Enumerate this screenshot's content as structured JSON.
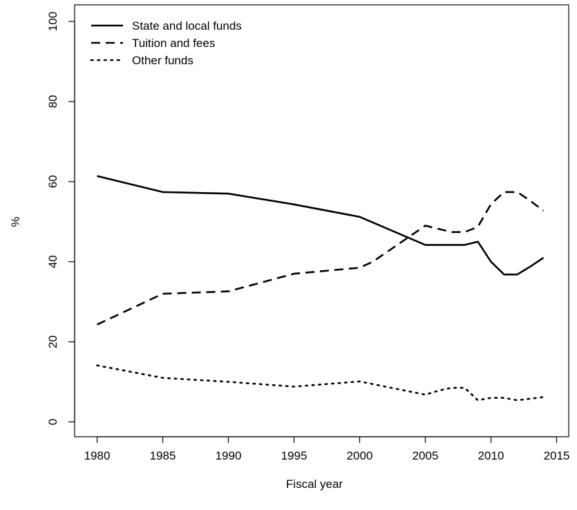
{
  "chart_data": {
    "type": "line",
    "title": "",
    "xlabel": "Fiscal year",
    "ylabel": "%",
    "xlim": [
      1980,
      2015
    ],
    "ylim": [
      0,
      100
    ],
    "x_ticks": [
      1980,
      1985,
      1990,
      1995,
      2000,
      2005,
      2010,
      2015
    ],
    "y_ticks": [
      0,
      20,
      40,
      60,
      80,
      100
    ],
    "grid": false,
    "legend_position": "top-left",
    "series": [
      {
        "name": "State and local funds",
        "line_style": "solid",
        "color": "#000000",
        "x": [
          1980,
          1985,
          1990,
          1995,
          2000,
          2001,
          2005,
          2006,
          2007,
          2008,
          2009,
          2010,
          2011,
          2012,
          2013,
          2014
        ],
        "y": [
          61.4,
          57.4,
          57.0,
          54.3,
          51.2,
          49.8,
          44.2,
          44.2,
          44.2,
          44.2,
          45.0,
          40.0,
          36.8,
          36.8,
          38.8,
          41.0
        ]
      },
      {
        "name": "Tuition and fees",
        "line_style": "dashed",
        "color": "#000000",
        "x": [
          1980,
          1985,
          1990,
          1995,
          2000,
          2001,
          2005,
          2006,
          2007,
          2008,
          2009,
          2010,
          2011,
          2012,
          2013,
          2014
        ],
        "y": [
          24.3,
          32.0,
          32.6,
          37.0,
          38.5,
          40.0,
          49.0,
          48.2,
          47.4,
          47.4,
          48.7,
          54.4,
          57.4,
          57.4,
          55.2,
          52.7
        ]
      },
      {
        "name": "Other funds",
        "line_style": "dotted",
        "color": "#000000",
        "x": [
          1980,
          1985,
          1990,
          1995,
          2000,
          2005,
          2006,
          2007,
          2008,
          2009,
          2010,
          2011,
          2012,
          2013,
          2014
        ],
        "y": [
          14.1,
          11.0,
          10.0,
          8.8,
          10.1,
          6.8,
          7.8,
          8.5,
          8.5,
          5.4,
          6.0,
          6.0,
          5.4,
          5.8,
          6.2
        ]
      }
    ]
  }
}
